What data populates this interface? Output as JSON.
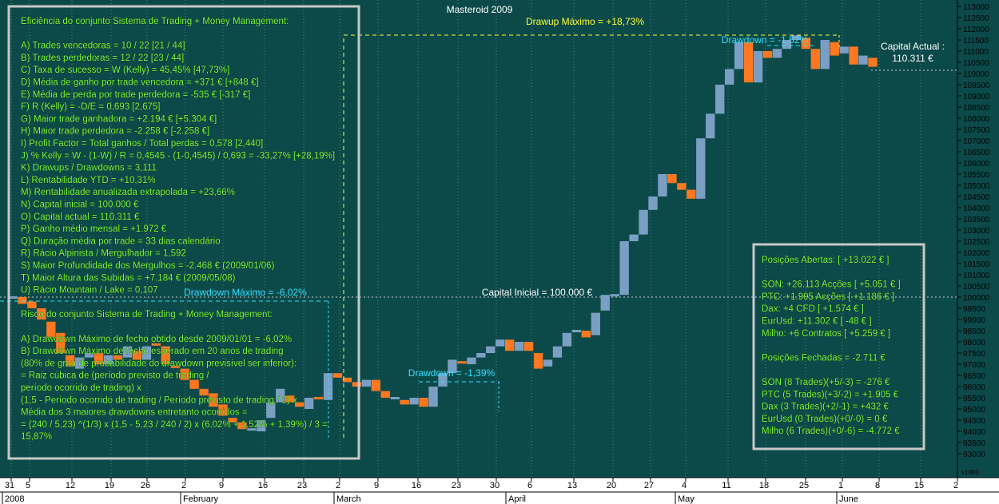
{
  "chart_title": "Masteroid 2009",
  "left_panel": {
    "lines": [
      "Eficiência do conjunto Sistema de Trading + Money Management:",
      "",
      "A) Trades vencedoras = 10 / 22   [21 / 44]",
      "B) Trades perdedoras = 12 / 22   [23 / 44]",
      "C) Taxa de sucesso = W (Kelly) = 45,45%   [47,73%]",
      "D) Média de ganho por trade vencedora = +371 €   [+848 €]",
      "E) Média de perda por trade perdedora = -535 €   [-317 €]",
      "F) R (Kelly) = -D/E = 0,693   [2,675]",
      "G) Maior trade ganhadora = +2.194 €   [+5.304 €]",
      "H) Maior trade perdedora = -2.258 €   [-2.258 €]",
      "I) Profit Factor = Total ganhos / Total perdas = 0,578   [2,440]",
      "J) % Kelly = W - (1-W) / R = 0,4545 - (1-0,4545) / 0,693 = -33,27%   [+28,19%]",
      "K) Drawups / Drawdowns = 3,111",
      "L) Rentabilidade YTD = +10,31%",
      "M) Rentabilidade anualizada extrapolada = +23,66%",
      "N) Capital inicial = 100.000 €",
      "O) Capital actual = 110.311 €",
      "P) Ganho médio mensal = +1.972 €",
      "Q) Duração média por trade = 33 dias calendário",
      "R) Rácio Alpinista / Mergulhador = 1,592",
      "S) Maior Profundidade dos Mergulhos = -2.468 € (2009/01/06)",
      "T) Maior Altura das Subidas = +7.184 € (2009/05/08)",
      "U) Rácio Mountain / Lake = 0,107",
      "",
      "Risco do conjunto Sistema de Trading + Money Management:",
      "",
      "A) Drawdown Máximo de fecho obtido desde 2009/01/01 = -6,02%",
      "B) Drawdown Máximo de fecho esperado em 20 anos de trading",
      "(80% de grau de probabilidade do drawdown previsível ser inferior):",
      "= Raiz cúbica de (período previsto de trading /",
      "período ocorrido de trading) x",
      "(1,5 - Período ocorrido de trading / Período previsto de trading / 2) x",
      "Média dos 3 maiores drawdowns entretanto ocorridos =",
      "= (240 / 5,23) ^(1/3) x (1,5 - 5,23 / 240 / 2) x (6,02% + 1,52% + 1,39%) / 3 =",
      "15,87%"
    ]
  },
  "right_panel": {
    "lines": [
      "Posições Abertas: [ +13.022 € ]",
      "",
      "SON: +26.113 Acções [ +5.051 € ]",
      "PTC: +1.995 Acções [ +1.186 € ]",
      "Dax: +4 CFD [ +1.574 € ]",
      "EurUsd: +11.302 € [ -48 € ]",
      "Milho: +6 Contratos [ +5.259 € ]",
      "",
      "Posições Fechadas = -2.711 €",
      "",
      "SON (8 Trades)(+5/-3) = -276 €",
      "PTC (5 Trades)(+3/-2) = +1.905 €",
      "Dax (3 Trades)(+2/-1) = +432 €",
      "EurUsd (0 Trades)(+0/-0) = 0 €",
      "Milho (6 Trades)(+0/-6) = -4.772 €"
    ]
  },
  "annotations": {
    "drawup_max": "Drawup Máximo = +18,73%",
    "drawdown_top": "Drawdown = -1,52%",
    "capital_actual_label": "Capital Actual :",
    "capital_actual_value": "110.311 €",
    "capital_inicial": "Capital Inicial = 100.000 €",
    "drawdown_max": "Drawdown Máximo = -6,02%",
    "drawdown_mid": "Drawdown = -1,39%"
  },
  "colors": {
    "background": "#0c4a4a",
    "up_bar": "#7b9fc4",
    "down_bar": "#ff7820",
    "panel_text": "#7dff3a",
    "panel_border": "#c8c8c8",
    "annotation_yellow": "#ffff33",
    "annotation_cyan": "#33e0ff"
  },
  "x_axis": {
    "day_labels": [
      "31",
      "5",
      "12",
      "19",
      "26",
      "2",
      "9",
      "16",
      "23",
      "2",
      "9",
      "16",
      "23",
      "30",
      "6",
      "13",
      "20",
      "27",
      "4",
      "11",
      "18",
      "25",
      "1",
      "8",
      "15",
      "2"
    ],
    "month_labels": [
      "2008",
      "February",
      "March",
      "April",
      "May",
      "June"
    ]
  },
  "y_axis": {
    "tick_labels": [
      "113000",
      "112500",
      "112000",
      "111500",
      "111000",
      "110500",
      "110000",
      "109500",
      "109000",
      "108500",
      "108000",
      "107500",
      "107000",
      "106500",
      "106000",
      "105500",
      "105000",
      "104500",
      "104000",
      "103500",
      "103000",
      "102500",
      "102000",
      "101500",
      "101000",
      "100500",
      "100000",
      "99500",
      "99000",
      "98500",
      "98000",
      "97500",
      "97000",
      "96500",
      "96000",
      "95500",
      "95000",
      "94500",
      "94000",
      "93500",
      "93000"
    ],
    "unit_label": "x1000"
  },
  "chart_data": {
    "type": "candlestick",
    "title": "Masteroid 2009",
    "ylim": [
      92500,
      113300
    ],
    "reference_line": 100000,
    "bars": [
      {
        "o": 100000,
        "c": 100000
      },
      {
        "o": 100000,
        "c": 99700
      },
      {
        "o": 99800,
        "c": 99500
      },
      {
        "o": 99500,
        "c": 99000
      },
      {
        "o": 98900,
        "c": 98200
      },
      {
        "o": 98400,
        "c": 97500
      },
      {
        "o": 97400,
        "c": 96900
      },
      {
        "o": 96800,
        "c": 97300
      },
      {
        "o": 97300,
        "c": 97500
      },
      {
        "o": 97500,
        "c": 97000
      },
      {
        "o": 97000,
        "c": 97400
      },
      {
        "o": 97400,
        "c": 97200
      },
      {
        "o": 97300,
        "c": 97800
      },
      {
        "o": 97600,
        "c": 97200
      },
      {
        "o": 97200,
        "c": 97800
      },
      {
        "o": 97900,
        "c": 97800
      },
      {
        "o": 97800,
        "c": 97000
      },
      {
        "o": 96900,
        "c": 96800
      },
      {
        "o": 96800,
        "c": 96300
      },
      {
        "o": 96300,
        "c": 95900
      },
      {
        "o": 95900,
        "c": 95600
      },
      {
        "o": 95700,
        "c": 95100
      },
      {
        "o": 95200,
        "c": 94700
      },
      {
        "o": 94600,
        "c": 94400
      },
      {
        "o": 94400,
        "c": 94100
      },
      {
        "o": 94100,
        "c": 94100
      },
      {
        "o": 94000,
        "c": 94500
      },
      {
        "o": 94600,
        "c": 95300
      },
      {
        "o": 95300,
        "c": 95900
      },
      {
        "o": 95600,
        "c": 95300
      },
      {
        "o": 95300,
        "c": 95100
      },
      {
        "o": 95000,
        "c": 95500
      },
      {
        "o": 95500,
        "c": 95400
      },
      {
        "o": 95400,
        "c": 96600
      },
      {
        "o": 96600,
        "c": 96400
      },
      {
        "o": 96400,
        "c": 96200
      },
      {
        "o": 96200,
        "c": 96000
      },
      {
        "o": 96000,
        "c": 96300
      },
      {
        "o": 96300,
        "c": 95800
      },
      {
        "o": 95800,
        "c": 95500
      },
      {
        "o": 95500,
        "c": 95500
      },
      {
        "o": 95400,
        "c": 95200
      },
      {
        "o": 95200,
        "c": 95500
      },
      {
        "o": 95500,
        "c": 95100
      },
      {
        "o": 95100,
        "c": 96000
      },
      {
        "o": 96000,
        "c": 96600
      },
      {
        "o": 96600,
        "c": 97200
      },
      {
        "o": 97100,
        "c": 97000
      },
      {
        "o": 97000,
        "c": 97300
      },
      {
        "o": 97300,
        "c": 97500
      },
      {
        "o": 97500,
        "c": 97800
      },
      {
        "o": 97800,
        "c": 98100
      },
      {
        "o": 98100,
        "c": 97600
      },
      {
        "o": 97600,
        "c": 98000
      },
      {
        "o": 98000,
        "c": 97600
      },
      {
        "o": 97500,
        "c": 96800
      },
      {
        "o": 96900,
        "c": 97200
      },
      {
        "o": 97300,
        "c": 97800
      },
      {
        "o": 97800,
        "c": 98400
      },
      {
        "o": 98400,
        "c": 98500
      },
      {
        "o": 98500,
        "c": 98200
      },
      {
        "o": 98300,
        "c": 99300
      },
      {
        "o": 99400,
        "c": 100100
      },
      {
        "o": 100100,
        "c": 100100
      },
      {
        "o": 100100,
        "c": 102500
      },
      {
        "o": 102500,
        "c": 102800
      },
      {
        "o": 102800,
        "c": 103900
      },
      {
        "o": 103900,
        "c": 104500
      },
      {
        "o": 104500,
        "c": 105500
      },
      {
        "o": 105500,
        "c": 105100
      },
      {
        "o": 105100,
        "c": 104800
      },
      {
        "o": 104800,
        "c": 104400
      },
      {
        "o": 104400,
        "c": 107100
      },
      {
        "o": 107100,
        "c": 108200
      },
      {
        "o": 108200,
        "c": 109500
      },
      {
        "o": 109500,
        "c": 110200
      },
      {
        "o": 110200,
        "c": 111400
      },
      {
        "o": 111400,
        "c": 109600
      },
      {
        "o": 109600,
        "c": 111000
      },
      {
        "o": 111000,
        "c": 110700
      },
      {
        "o": 110700,
        "c": 111100
      },
      {
        "o": 111100,
        "c": 111500
      },
      {
        "o": 111500,
        "c": 111700
      },
      {
        "o": 111600,
        "c": 111100
      },
      {
        "o": 111100,
        "c": 110200
      },
      {
        "o": 110200,
        "c": 111500
      },
      {
        "o": 111400,
        "c": 110800
      },
      {
        "o": 110900,
        "c": 111200
      },
      {
        "o": 111200,
        "c": 110400
      },
      {
        "o": 110400,
        "c": 110800
      },
      {
        "o": 110700,
        "c": 110300
      }
    ]
  }
}
